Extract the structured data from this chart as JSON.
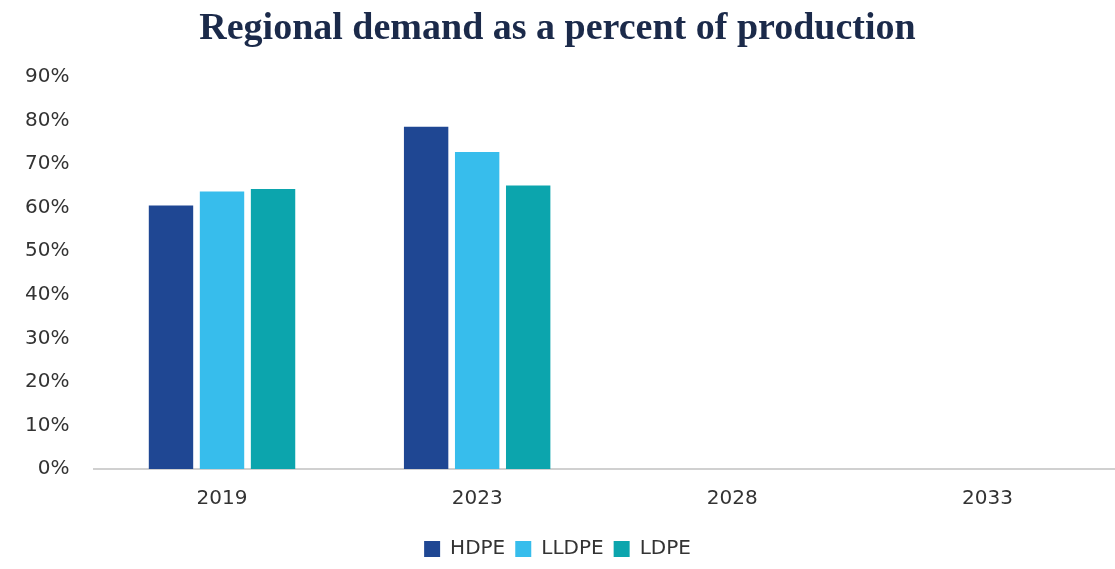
{
  "chart_data": {
    "type": "bar",
    "title": "Regional demand as a percent of production",
    "categories": [
      "2019",
      "2023",
      "2028",
      "2033"
    ],
    "series": [
      {
        "name": "HDPE",
        "color": "#1f4793",
        "values": [
          60.5,
          78.6,
          null,
          null
        ]
      },
      {
        "name": "LLDPE",
        "color": "#37bdec",
        "values": [
          63.7,
          72.8,
          null,
          null
        ]
      },
      {
        "name": "LDPE",
        "color": "#0ca5ad",
        "values": [
          64.3,
          65.1,
          null,
          null
        ]
      }
    ],
    "ylim": [
      0,
      90
    ],
    "yticks": [
      {
        "value": 0,
        "label": "0%"
      },
      {
        "value": 10,
        "label": "10%"
      },
      {
        "value": 20,
        "label": "20%"
      },
      {
        "value": 30,
        "label": "30%"
      },
      {
        "value": 40,
        "label": "40%"
      },
      {
        "value": 50,
        "label": "50%"
      },
      {
        "value": 60,
        "label": "60%"
      },
      {
        "value": 70,
        "label": "70%"
      },
      {
        "value": 80,
        "label": "80%"
      },
      {
        "value": 90,
        "label": "90%"
      }
    ],
    "grid": false,
    "legend": "bottom"
  }
}
